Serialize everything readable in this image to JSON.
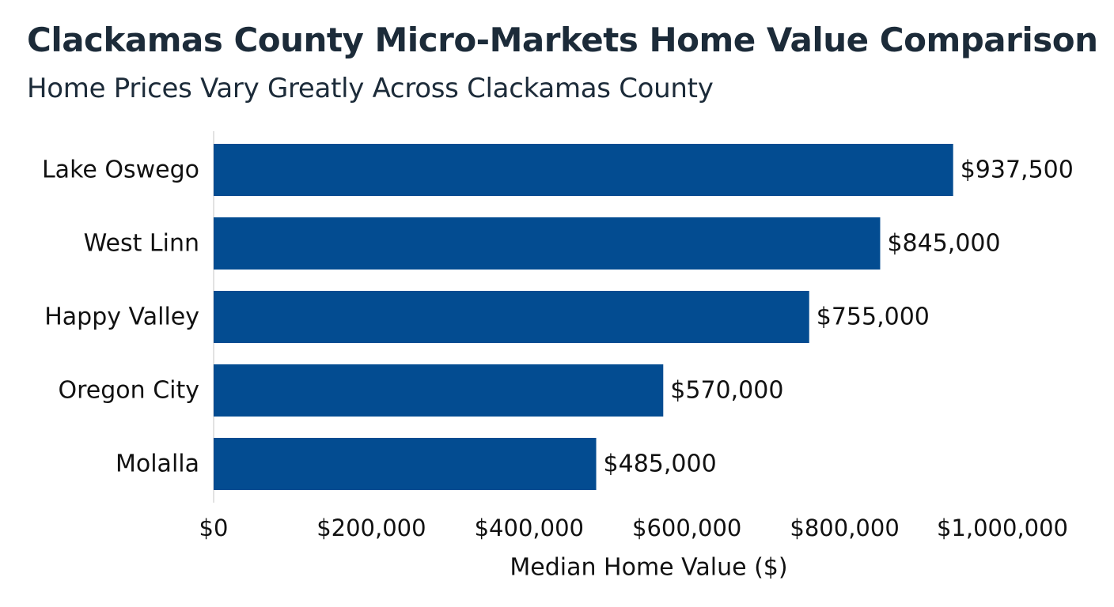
{
  "chart_data": {
    "type": "bar",
    "orientation": "horizontal",
    "title": "Clackamas County Micro-Markets Home Value Comparison",
    "subtitle": "Home Prices Vary Greatly Across Clackamas County",
    "xlabel": "Median Home Value ($)",
    "ylabel": "",
    "categories": [
      "Lake Oswego",
      "West Linn",
      "Happy Valley",
      "Oregon City",
      "Molalla"
    ],
    "values": [
      937500,
      845000,
      755000,
      570000,
      485000
    ],
    "data_labels": [
      "$937,500",
      "$845,000",
      "$755,000",
      "$570,000",
      "$485,000"
    ],
    "xlim": [
      0,
      1000000
    ],
    "x_ticks": [
      0,
      200000,
      400000,
      600000,
      800000,
      1000000
    ],
    "x_tick_labels": [
      "$0",
      "$200,000",
      "$400,000",
      "$600,000",
      "$800,000",
      "$1,000,000"
    ],
    "bar_color": "#034c91",
    "axis_color": "#d8d8d8",
    "grid": false,
    "legend": "none"
  }
}
